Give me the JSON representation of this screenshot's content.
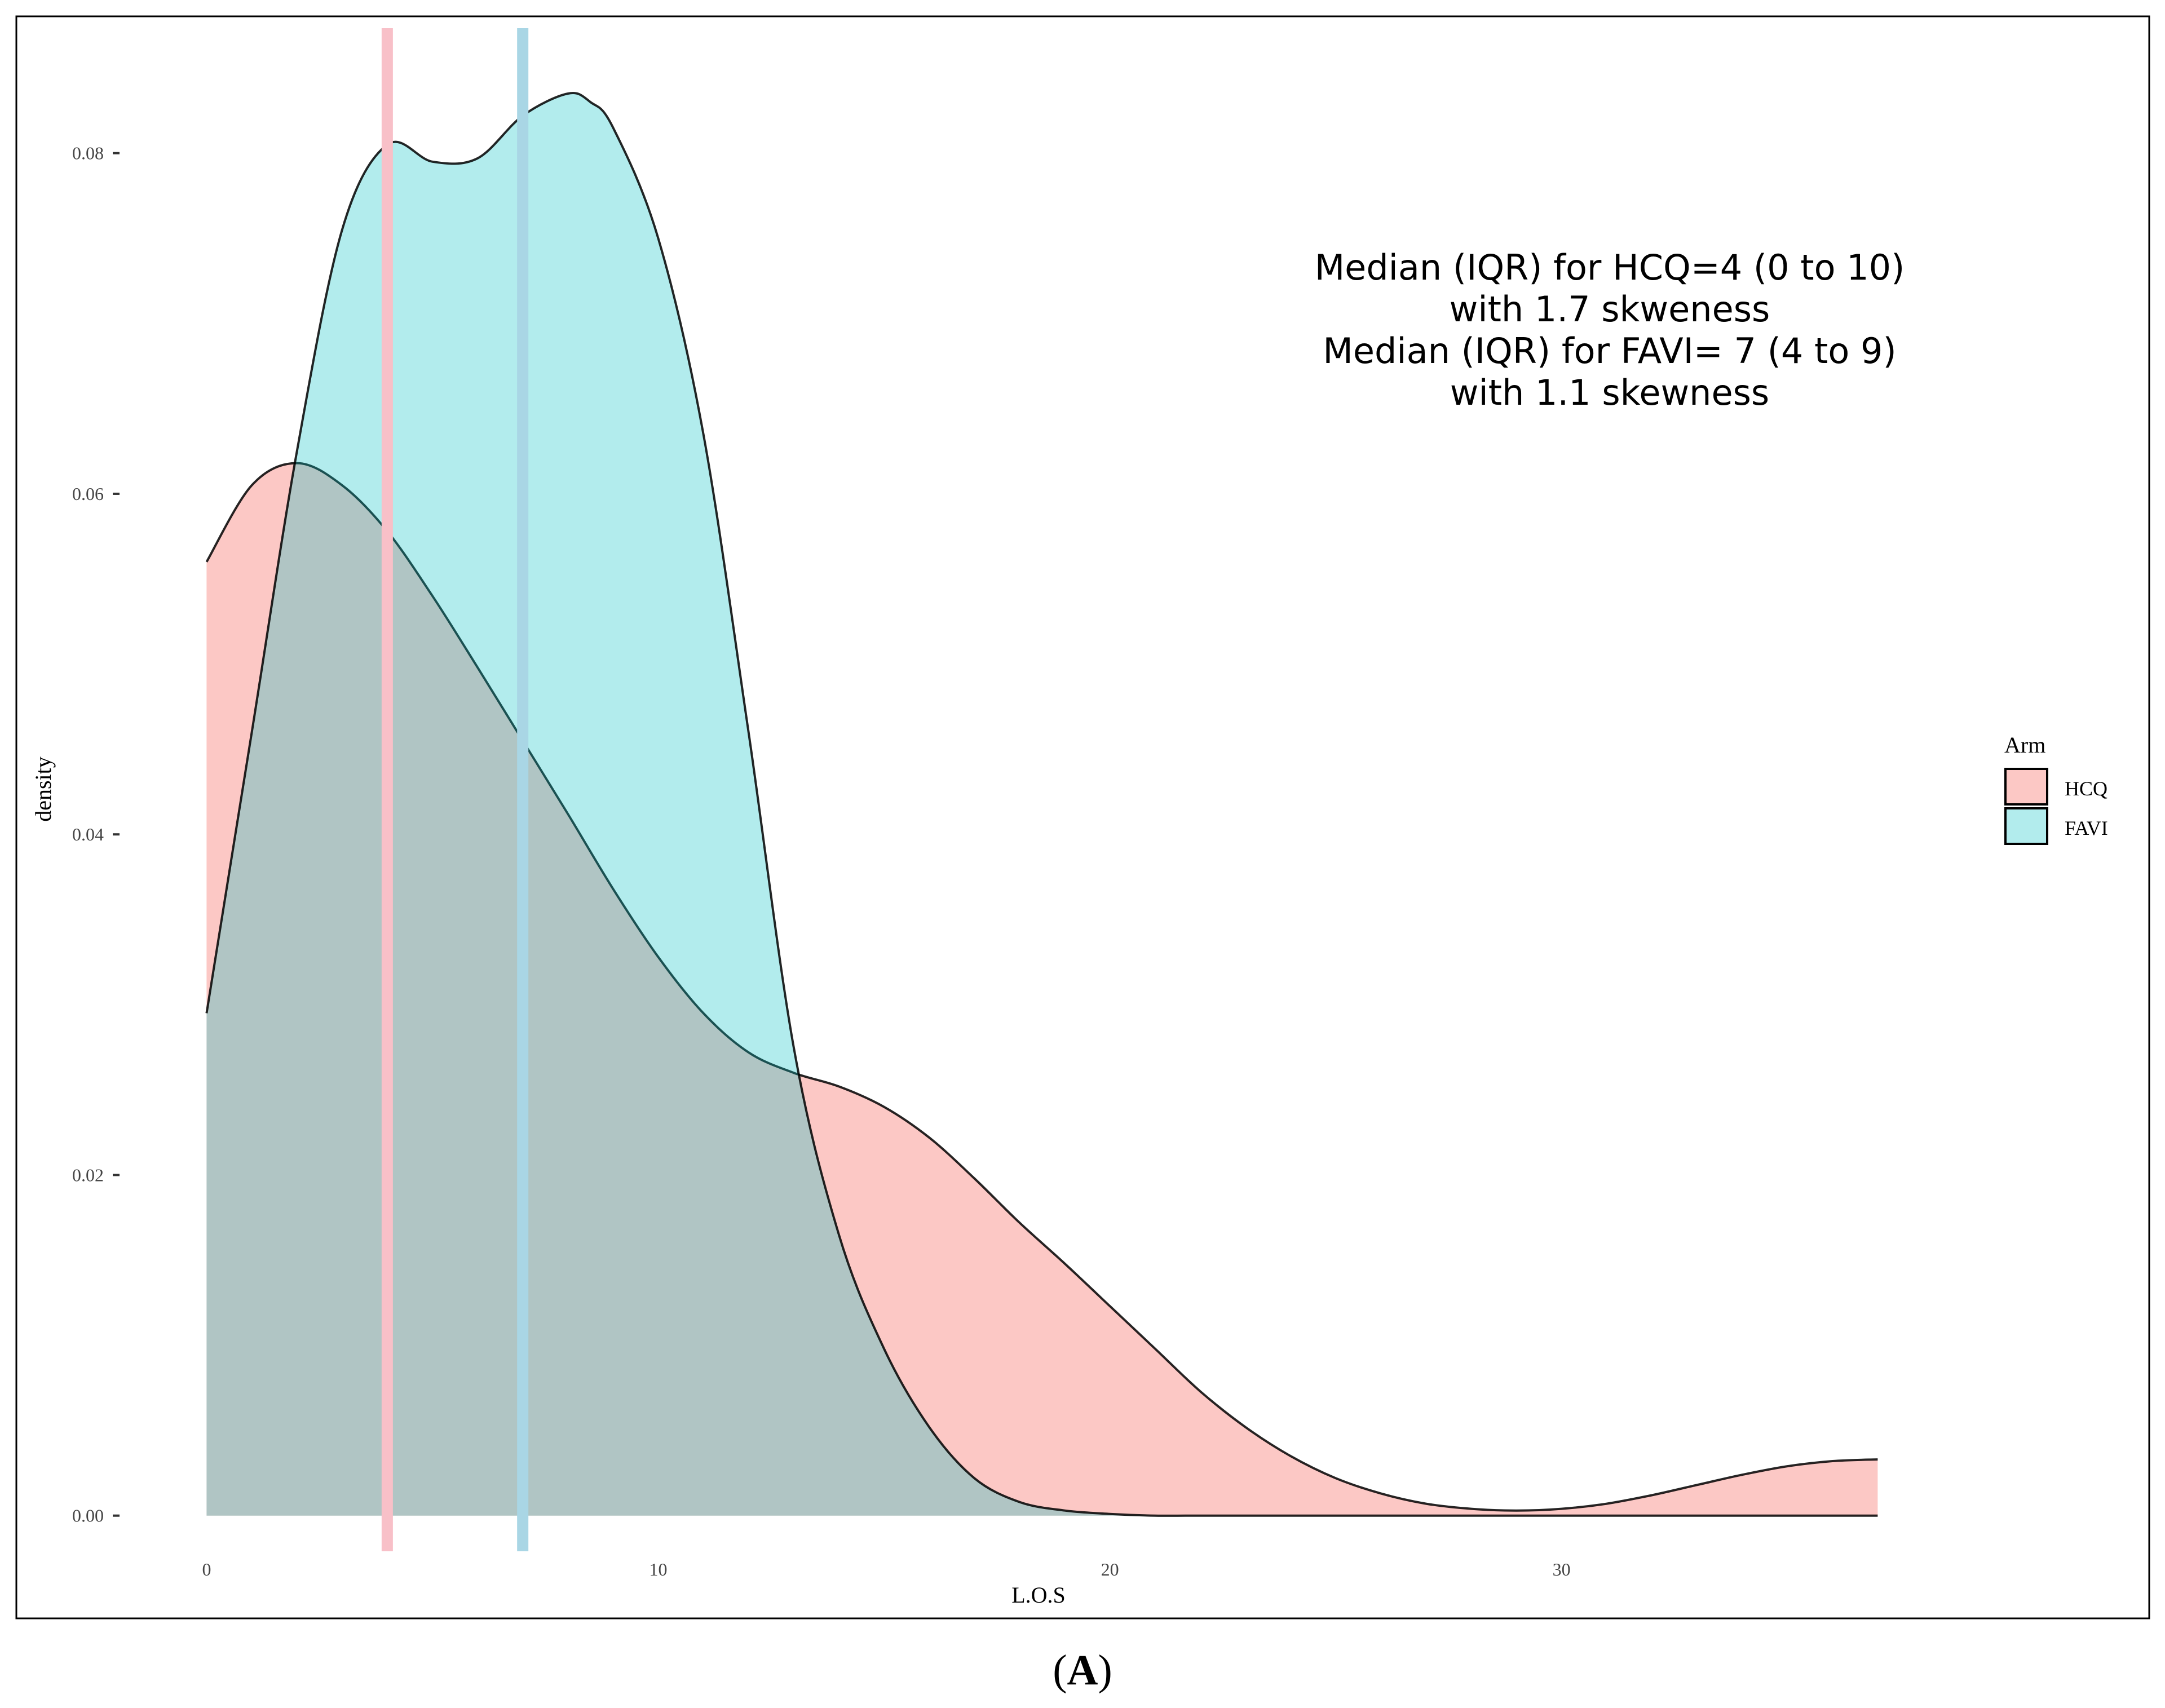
{
  "panel_label": {
    "open": "(",
    "letter": "A",
    "close": ")"
  },
  "chart_data": {
    "type": "area",
    "xlabel": "L.O.S",
    "ylabel": "density",
    "xlim": [
      -4.2,
      43.0
    ],
    "ylim": [
      -0.006,
      0.088
    ],
    "x_ticks": [
      0,
      10,
      20,
      30
    ],
    "x_tick_labels": [
      "0",
      "10",
      "20",
      "30"
    ],
    "y_ticks": [
      0.0,
      0.02,
      0.04,
      0.06,
      0.08
    ],
    "y_tick_labels": [
      "0.00",
      "0.02",
      "0.04",
      "0.06",
      "0.08"
    ],
    "grid": false,
    "legend": {
      "title": "Arm",
      "placement": "right",
      "entries": [
        {
          "label": "HCQ",
          "color": "#F8766D"
        },
        {
          "label": "FAVI",
          "color": "#00BFC4"
        }
      ]
    },
    "annotation": {
      "lines": [
        "Median (IQR) for HCQ=4 (0 to 10)",
        "with 1.7 skweness",
        "Median (IQR) for FAVI= 7 (4 to 9)",
        "with 1.1 skewness"
      ]
    },
    "median_lines": [
      {
        "arm": "HCQ",
        "x": 4,
        "color": "#F8C0C8"
      },
      {
        "arm": "FAVI",
        "x": 7,
        "color": "#A9D6E5"
      }
    ],
    "series": [
      {
        "name": "HCQ",
        "color": "#F8766D",
        "fill_opacity": 0.4,
        "x": [
          0,
          1,
          2,
          3,
          4,
          5,
          6,
          7,
          8,
          9,
          10,
          11,
          12,
          13,
          14,
          15,
          16,
          17,
          18,
          19,
          20,
          21,
          22,
          23,
          24,
          25,
          26,
          27,
          28,
          29,
          30,
          31,
          32,
          33,
          34,
          35,
          36,
          37
        ],
        "y": [
          0.056,
          0.0605,
          0.0618,
          0.0605,
          0.0578,
          0.054,
          0.0498,
          0.0455,
          0.0412,
          0.0368,
          0.0328,
          0.0295,
          0.0272,
          0.026,
          0.0252,
          0.024,
          0.0222,
          0.0198,
          0.0172,
          0.0148,
          0.0123,
          0.0098,
          0.0073,
          0.0052,
          0.0035,
          0.0022,
          0.0013,
          0.0007,
          0.0004,
          0.0003,
          0.0004,
          0.0007,
          0.0012,
          0.0018,
          0.0024,
          0.0029,
          0.0032,
          0.0033
        ]
      },
      {
        "name": "FAVI",
        "color": "#00BFC4",
        "fill_opacity": 0.3,
        "x": [
          0,
          1,
          2,
          3,
          4,
          5,
          6,
          7,
          8,
          8.5,
          9,
          10,
          11,
          12,
          13,
          14,
          15,
          16,
          17,
          18,
          19,
          20,
          21,
          22,
          23,
          24,
          25,
          26,
          27,
          28,
          29,
          30,
          31,
          32,
          33,
          34,
          35,
          36,
          37
        ],
        "y": [
          0.0295,
          0.046,
          0.0625,
          0.0755,
          0.0805,
          0.0795,
          0.0797,
          0.0822,
          0.0835,
          0.083,
          0.0815,
          0.075,
          0.0635,
          0.046,
          0.0275,
          0.0165,
          0.0098,
          0.0052,
          0.0022,
          0.0008,
          0.0003,
          0.0001,
          0.0,
          0.0,
          0.0,
          0.0,
          0.0,
          0.0,
          0.0,
          0.0,
          0.0,
          0.0,
          0.0,
          0.0,
          0.0,
          0.0,
          0.0,
          0.0,
          0.0
        ]
      }
    ]
  }
}
